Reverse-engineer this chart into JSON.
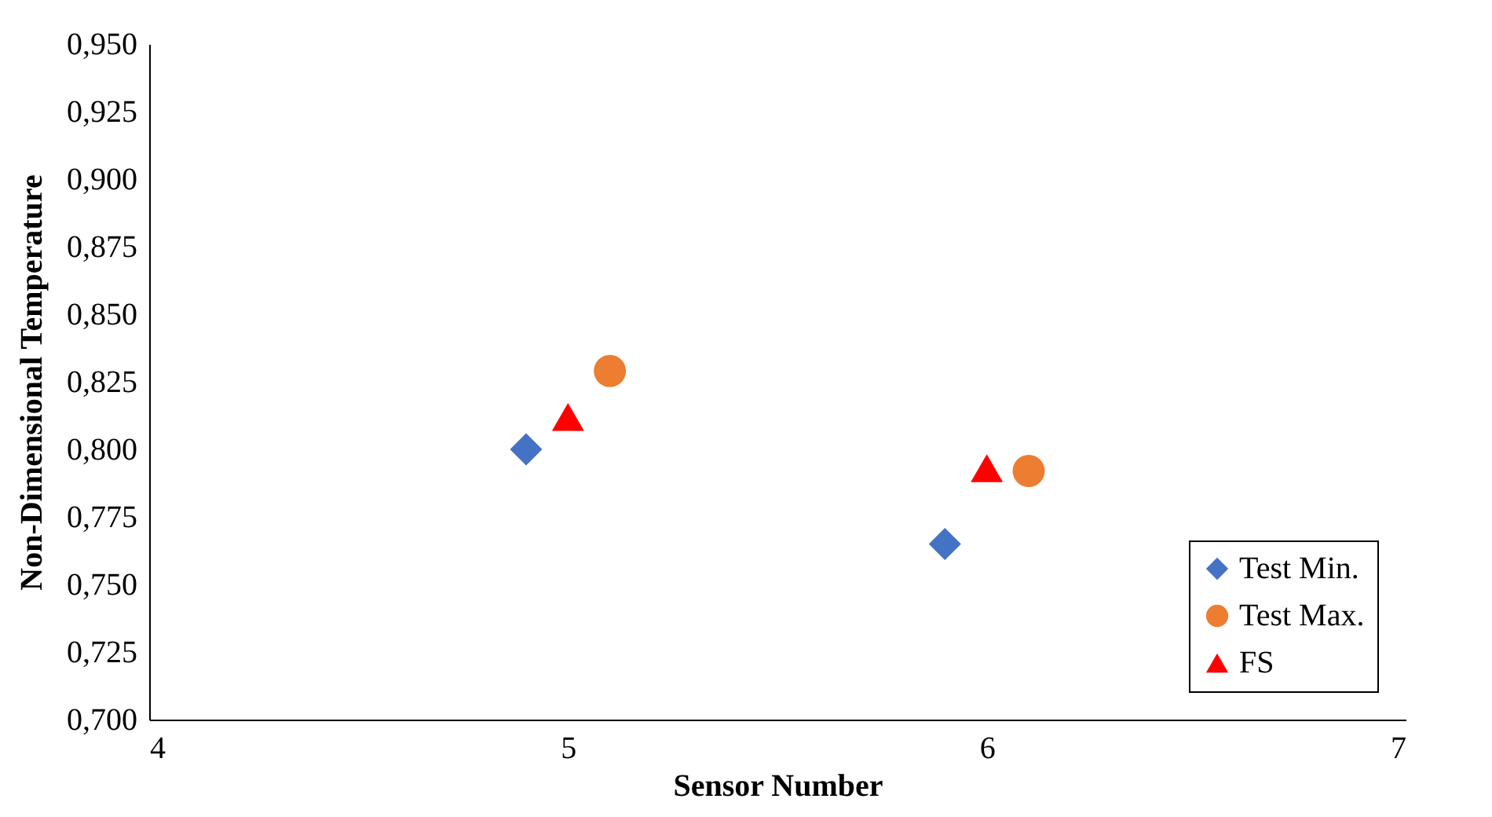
{
  "chart_data": {
    "type": "scatter",
    "xlabel": "Sensor Number",
    "ylabel": "Non-Dimensional Temperature",
    "xlim": [
      4,
      7
    ],
    "xticks": [
      4,
      5,
      6,
      7
    ],
    "ylim": [
      0.7,
      0.95
    ],
    "yticks": [
      {
        "value": 0.7,
        "label": "0,700"
      },
      {
        "value": 0.725,
        "label": "0,725"
      },
      {
        "value": 0.75,
        "label": "0,750"
      },
      {
        "value": 0.775,
        "label": "0,775"
      },
      {
        "value": 0.8,
        "label": "0,800"
      },
      {
        "value": 0.825,
        "label": "0,825"
      },
      {
        "value": 0.85,
        "label": "0,850"
      },
      {
        "value": 0.875,
        "label": "0,875"
      },
      {
        "value": 0.9,
        "label": "0,900"
      },
      {
        "value": 0.925,
        "label": "0,925"
      },
      {
        "value": 0.95,
        "label": "0,950"
      }
    ],
    "grid": false,
    "legend": "bottom right",
    "series": [
      {
        "name": "Test Min.",
        "color": "#4472c4",
        "marker": "diamond",
        "x": [
          4.9,
          5.9
        ],
        "values": [
          0.8,
          0.765
        ]
      },
      {
        "name": "Test Max.",
        "color": "#ed7d31",
        "marker": "circle",
        "x": [
          5.1,
          6.1
        ],
        "values": [
          0.829,
          0.792
        ]
      },
      {
        "name": "FS",
        "color": "#ff0000",
        "marker": "triangle",
        "x": [
          5.0,
          6.0
        ],
        "values": [
          0.812,
          0.793
        ]
      }
    ]
  }
}
